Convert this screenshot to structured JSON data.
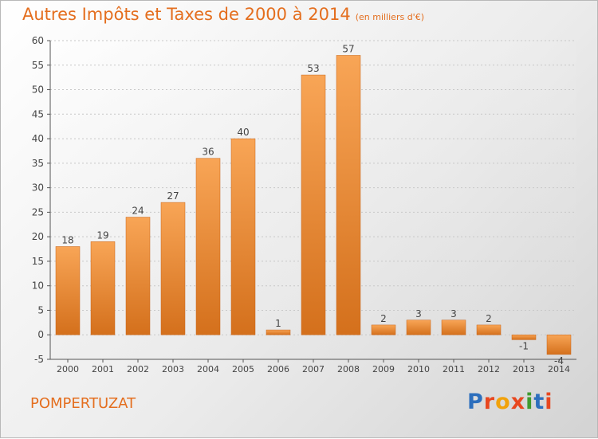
{
  "title": "Autres Impôts et Taxes de 2000 à 2014",
  "subtitle": "(en milliers d'€)",
  "commune": "POMPERTUZAT",
  "logo_text": "Proxiti",
  "colors": {
    "accent": "#e46e1e",
    "bar_top": "#f8a556",
    "bar_bottom": "#d4701c",
    "logo": [
      "#2d6fbd",
      "#e8471f",
      "#f1a20b",
      "#e8471f",
      "#3f9a2e",
      "#2d6fbd",
      "#e8471f"
    ]
  },
  "chart_data": {
    "type": "bar",
    "categories": [
      "2000",
      "2001",
      "2002",
      "2003",
      "2004",
      "2005",
      "2006",
      "2007",
      "2008",
      "2009",
      "2010",
      "2011",
      "2012",
      "2013",
      "2014"
    ],
    "values": [
      18,
      19,
      24,
      27,
      36,
      40,
      1,
      53,
      57,
      2,
      3,
      3,
      2,
      -1,
      -4
    ],
    "value_labels": [
      "18",
      "19",
      "24",
      "27",
      "36",
      "40",
      "1",
      "53",
      "57",
      "2",
      "3",
      "3",
      "2",
      "-1",
      "-4"
    ],
    "ylim": [
      -5,
      60
    ],
    "yticks": [
      -5,
      0,
      5,
      10,
      15,
      20,
      25,
      30,
      35,
      40,
      45,
      50,
      55,
      60
    ],
    "grid": true,
    "xlabel": "",
    "ylabel": ""
  }
}
